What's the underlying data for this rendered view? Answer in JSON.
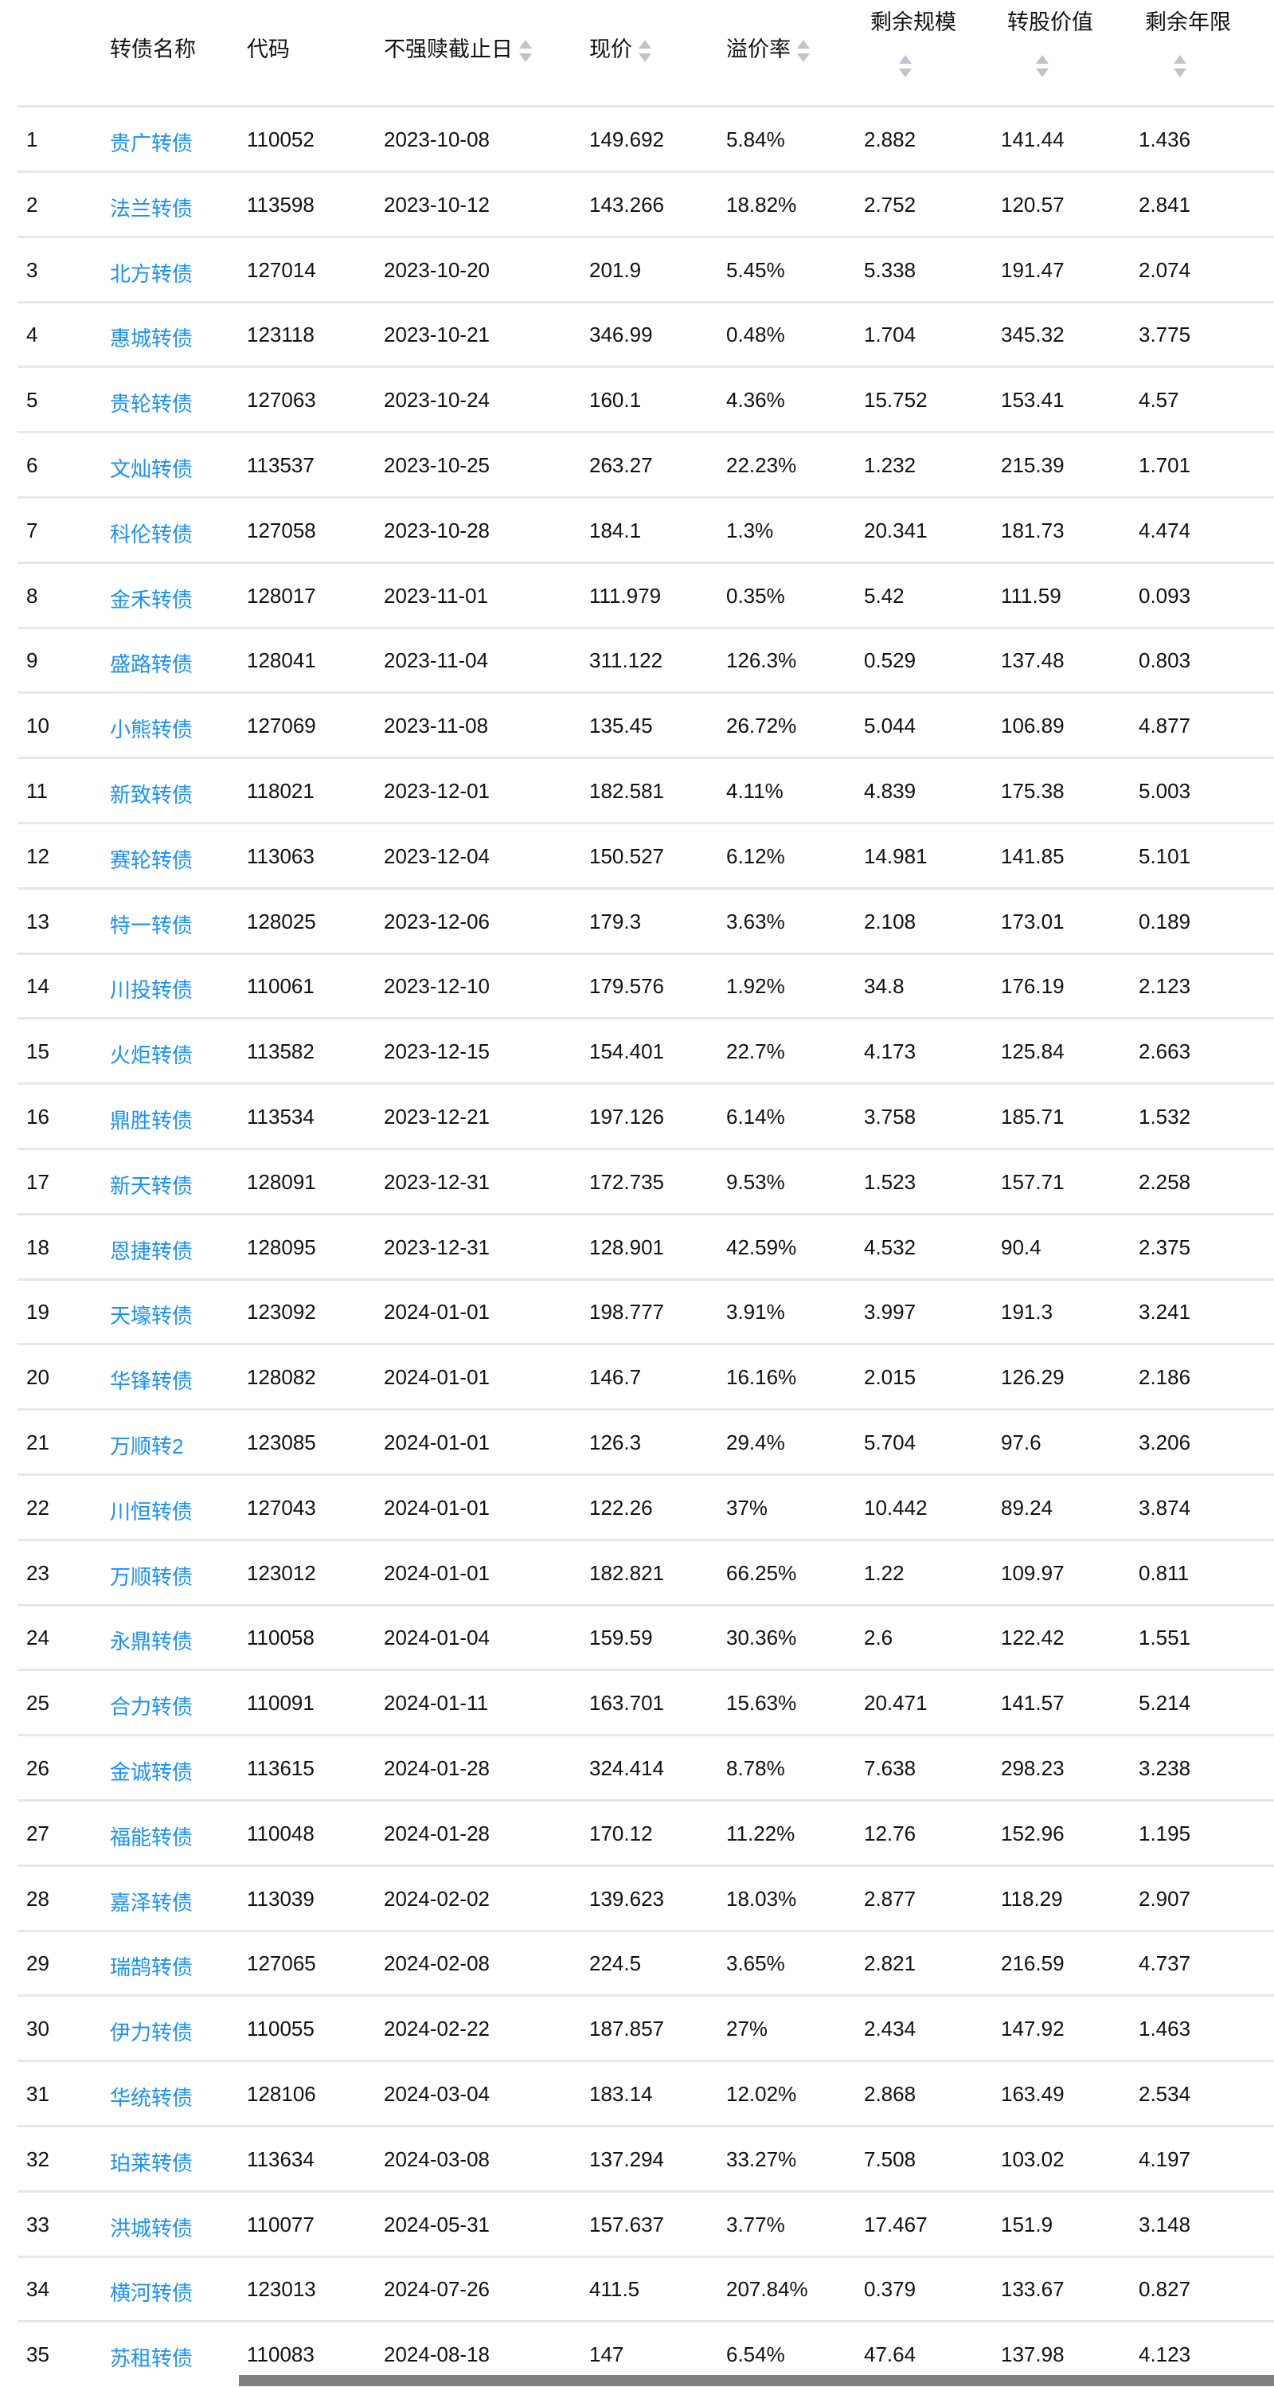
{
  "table": {
    "columns": [
      {
        "label": "转债名称",
        "sortable": false
      },
      {
        "label": "代码",
        "sortable": false
      },
      {
        "label": "不强赎截止日",
        "sortable": true
      },
      {
        "label": "现价",
        "sortable": true
      },
      {
        "label": "溢价率",
        "sortable": true
      },
      {
        "label": "剩余规模",
        "sortable": true
      },
      {
        "label": "转股价值",
        "sortable": true
      },
      {
        "label": "剩余年限",
        "sortable": true
      }
    ],
    "sort_icon": "sort-caret-up-down-icon",
    "link_color": "#1890ff",
    "rows": [
      [
        "1",
        "贵广转债",
        "110052",
        "2023-10-08",
        "149.692",
        "5.84%",
        "2.882",
        "141.44",
        "1.436"
      ],
      [
        "2",
        "法兰转债",
        "113598",
        "2023-10-12",
        "143.266",
        "18.82%",
        "2.752",
        "120.57",
        "2.841"
      ],
      [
        "3",
        "北方转债",
        "127014",
        "2023-10-20",
        "201.9",
        "5.45%",
        "5.338",
        "191.47",
        "2.074"
      ],
      [
        "4",
        "惠城转债",
        "123118",
        "2023-10-21",
        "346.99",
        "0.48%",
        "1.704",
        "345.32",
        "3.775"
      ],
      [
        "5",
        "贵轮转债",
        "127063",
        "2023-10-24",
        "160.1",
        "4.36%",
        "15.752",
        "153.41",
        "4.57"
      ],
      [
        "6",
        "文灿转债",
        "113537",
        "2023-10-25",
        "263.27",
        "22.23%",
        "1.232",
        "215.39",
        "1.701"
      ],
      [
        "7",
        "科伦转债",
        "127058",
        "2023-10-28",
        "184.1",
        "1.3%",
        "20.341",
        "181.73",
        "4.474"
      ],
      [
        "8",
        "金禾转债",
        "128017",
        "2023-11-01",
        "111.979",
        "0.35%",
        "5.42",
        "111.59",
        "0.093"
      ],
      [
        "9",
        "盛路转债",
        "128041",
        "2023-11-04",
        "311.122",
        "126.3%",
        "0.529",
        "137.48",
        "0.803"
      ],
      [
        "10",
        "小熊转债",
        "127069",
        "2023-11-08",
        "135.45",
        "26.72%",
        "5.044",
        "106.89",
        "4.877"
      ],
      [
        "11",
        "新致转债",
        "118021",
        "2023-12-01",
        "182.581",
        "4.11%",
        "4.839",
        "175.38",
        "5.003"
      ],
      [
        "12",
        "赛轮转债",
        "113063",
        "2023-12-04",
        "150.527",
        "6.12%",
        "14.981",
        "141.85",
        "5.101"
      ],
      [
        "13",
        "特一转债",
        "128025",
        "2023-12-06",
        "179.3",
        "3.63%",
        "2.108",
        "173.01",
        "0.189"
      ],
      [
        "14",
        "川投转债",
        "110061",
        "2023-12-10",
        "179.576",
        "1.92%",
        "34.8",
        "176.19",
        "2.123"
      ],
      [
        "15",
        "火炬转债",
        "113582",
        "2023-12-15",
        "154.401",
        "22.7%",
        "4.173",
        "125.84",
        "2.663"
      ],
      [
        "16",
        "鼎胜转债",
        "113534",
        "2023-12-21",
        "197.126",
        "6.14%",
        "3.758",
        "185.71",
        "1.532"
      ],
      [
        "17",
        "新天转债",
        "128091",
        "2023-12-31",
        "172.735",
        "9.53%",
        "1.523",
        "157.71",
        "2.258"
      ],
      [
        "18",
        "恩捷转债",
        "128095",
        "2023-12-31",
        "128.901",
        "42.59%",
        "4.532",
        "90.4",
        "2.375"
      ],
      [
        "19",
        "天壕转债",
        "123092",
        "2024-01-01",
        "198.777",
        "3.91%",
        "3.997",
        "191.3",
        "3.241"
      ],
      [
        "20",
        "华锋转债",
        "128082",
        "2024-01-01",
        "146.7",
        "16.16%",
        "2.015",
        "126.29",
        "2.186"
      ],
      [
        "21",
        "万顺转2",
        "123085",
        "2024-01-01",
        "126.3",
        "29.4%",
        "5.704",
        "97.6",
        "3.206"
      ],
      [
        "22",
        "川恒转债",
        "127043",
        "2024-01-01",
        "122.26",
        "37%",
        "10.442",
        "89.24",
        "3.874"
      ],
      [
        "23",
        "万顺转债",
        "123012",
        "2024-01-01",
        "182.821",
        "66.25%",
        "1.22",
        "109.97",
        "0.811"
      ],
      [
        "24",
        "永鼎转债",
        "110058",
        "2024-01-04",
        "159.59",
        "30.36%",
        "2.6",
        "122.42",
        "1.551"
      ],
      [
        "25",
        "合力转债",
        "110091",
        "2024-01-11",
        "163.701",
        "15.63%",
        "20.471",
        "141.57",
        "5.214"
      ],
      [
        "26",
        "金诚转债",
        "113615",
        "2024-01-28",
        "324.414",
        "8.78%",
        "7.638",
        "298.23",
        "3.238"
      ],
      [
        "27",
        "福能转债",
        "110048",
        "2024-01-28",
        "170.12",
        "11.22%",
        "12.76",
        "152.96",
        "1.195"
      ],
      [
        "28",
        "嘉泽转债",
        "113039",
        "2024-02-02",
        "139.623",
        "18.03%",
        "2.877",
        "118.29",
        "2.907"
      ],
      [
        "29",
        "瑞鹄转债",
        "127065",
        "2024-02-08",
        "224.5",
        "3.65%",
        "2.821",
        "216.59",
        "4.737"
      ],
      [
        "30",
        "伊力转债",
        "110055",
        "2024-02-22",
        "187.857",
        "27%",
        "2.434",
        "147.92",
        "1.463"
      ],
      [
        "31",
        "华统转债",
        "128106",
        "2024-03-04",
        "183.14",
        "12.02%",
        "2.868",
        "163.49",
        "2.534"
      ],
      [
        "32",
        "珀莱转债",
        "113634",
        "2024-03-08",
        "137.294",
        "33.27%",
        "7.508",
        "103.02",
        "4.197"
      ],
      [
        "33",
        "洪城转债",
        "110077",
        "2024-05-31",
        "157.637",
        "3.77%",
        "17.467",
        "151.9",
        "3.148"
      ],
      [
        "34",
        "横河转债",
        "123013",
        "2024-07-26",
        "411.5",
        "207.84%",
        "0.379",
        "133.67",
        "0.827"
      ],
      [
        "35",
        "苏租转债",
        "110083",
        "2024-08-18",
        "147",
        "6.54%",
        "47.64",
        "137.98",
        "4.123"
      ]
    ]
  }
}
